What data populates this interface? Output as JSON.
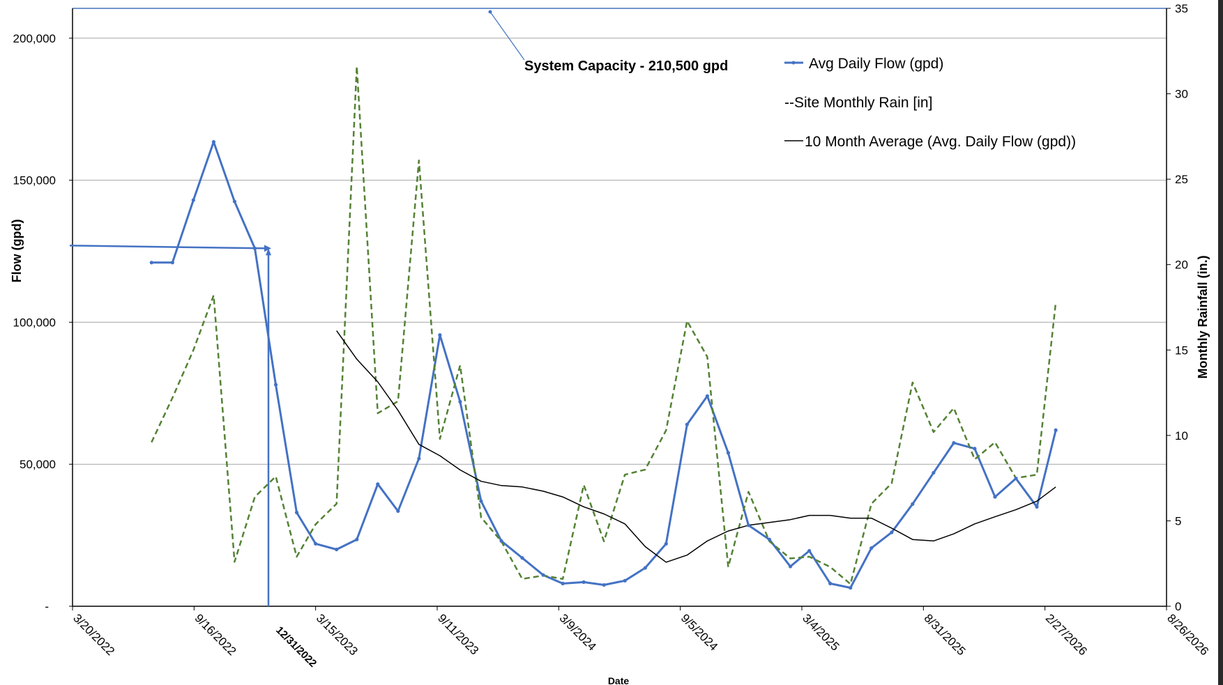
{
  "chart_data": {
    "type": "line",
    "x_label": "Date",
    "y_label_left": "Flow (gpd)",
    "y_label_right": "Monthly Rainfall (in.)",
    "x_ticks": [
      "3/20/2022",
      "9/16/2022",
      "3/15/2023",
      "9/11/2023",
      "3/9/2024",
      "9/5/2024",
      "3/4/2025",
      "8/31/2025",
      "2/27/2026",
      "8/26/2026"
    ],
    "highlight_tick": "12/31/2022",
    "y_left_ticks": [
      "-",
      "50,000",
      "100,000",
      "150,000",
      "200,000"
    ],
    "y_left_tick_values": [
      0,
      50000,
      100000,
      150000,
      200000
    ],
    "y_right_ticks": [
      "0",
      "5",
      "10",
      "15",
      "20",
      "25",
      "30",
      "35"
    ],
    "y_right_tick_values": [
      0,
      5,
      10,
      15,
      20,
      25,
      30,
      35
    ],
    "x_range": [
      "2022-03-20",
      "2026-08-26"
    ],
    "y_left_range": [
      0,
      210500
    ],
    "y_right_range": [
      0,
      35
    ],
    "grid": "horizontal",
    "legend_position": "top-right",
    "legend": [
      "Avg Daily Flow (gpd)",
      "--Site Monthly Rain [in]",
      "10 Month Average (Avg. Daily Flow (gpd))"
    ],
    "annotation": "System Capacity - 210,500 gpd",
    "colors": {
      "flow": "#4472C4",
      "rain": "#548235",
      "average": "#000000",
      "grid": "#a6a6a6"
    },
    "series": [
      {
        "name": "Avg Daily Flow (gpd)",
        "axis": "left",
        "points": [
          [
            "2022-07-15",
            121000
          ],
          [
            "2022-08-15",
            121000
          ],
          [
            "2022-09-15",
            143000
          ],
          [
            "2022-10-15",
            163500
          ],
          [
            "2022-11-15",
            142500
          ],
          [
            "2022-12-15",
            126000
          ],
          [
            "2023-01-15",
            78000
          ],
          [
            "2023-02-15",
            33000
          ],
          [
            "2023-03-15",
            22000
          ],
          [
            "2023-04-15",
            20000
          ],
          [
            "2023-05-15",
            23500
          ],
          [
            "2023-06-15",
            43000
          ],
          [
            "2023-07-15",
            33500
          ],
          [
            "2023-08-15",
            52000
          ],
          [
            "2023-09-15",
            95500
          ],
          [
            "2023-10-15",
            72000
          ],
          [
            "2023-11-15",
            37000
          ],
          [
            "2023-12-15",
            23000
          ],
          [
            "2024-01-15",
            17000
          ],
          [
            "2024-02-15",
            11000
          ],
          [
            "2024-03-15",
            8000
          ],
          [
            "2024-04-15",
            8500
          ],
          [
            "2024-05-15",
            7500
          ],
          [
            "2024-06-15",
            9000
          ],
          [
            "2024-07-15",
            13500
          ],
          [
            "2024-08-15",
            22000
          ],
          [
            "2024-09-15",
            64000
          ],
          [
            "2024-10-15",
            74000
          ],
          [
            "2024-11-15",
            54000
          ],
          [
            "2024-12-15",
            28500
          ],
          [
            "2025-01-15",
            23500
          ],
          [
            "2025-02-15",
            14000
          ],
          [
            "2025-03-15",
            19500
          ],
          [
            "2025-04-15",
            8000
          ],
          [
            "2025-05-15",
            6500
          ],
          [
            "2025-06-15",
            20500
          ],
          [
            "2025-07-15",
            26000
          ],
          [
            "2025-08-15",
            36000
          ],
          [
            "2025-09-15",
            47000
          ],
          [
            "2025-10-15",
            57500
          ],
          [
            "2025-11-15",
            55500
          ],
          [
            "2025-12-15",
            38500
          ],
          [
            "2026-01-15",
            45000
          ],
          [
            "2026-02-15",
            35000
          ],
          [
            "2026-03-15",
            62000
          ]
        ]
      },
      {
        "name": "Site Monthly Rain [in]",
        "axis": "right",
        "points": [
          [
            "2022-07-15",
            9.6
          ],
          [
            "2022-08-15",
            12.2
          ],
          [
            "2022-09-15",
            15.0
          ],
          [
            "2022-10-15",
            18.2
          ],
          [
            "2022-11-15",
            2.6
          ],
          [
            "2022-12-15",
            6.4
          ],
          [
            "2023-01-15",
            7.6
          ],
          [
            "2023-02-15",
            2.9
          ],
          [
            "2023-03-15",
            4.8
          ],
          [
            "2023-04-15",
            6.0
          ],
          [
            "2023-05-15",
            31.6
          ],
          [
            "2023-06-15",
            11.3
          ],
          [
            "2023-07-15",
            12.0
          ],
          [
            "2023-08-15",
            26.1
          ],
          [
            "2023-09-15",
            9.8
          ],
          [
            "2023-10-15",
            14.1
          ],
          [
            "2023-11-15",
            5.2
          ],
          [
            "2023-12-15",
            3.8
          ],
          [
            "2024-01-15",
            1.6
          ],
          [
            "2024-02-15",
            1.8
          ],
          [
            "2024-03-15",
            1.6
          ],
          [
            "2024-04-15",
            7.1
          ],
          [
            "2024-05-15",
            3.8
          ],
          [
            "2024-06-15",
            7.7
          ],
          [
            "2024-07-15",
            8.0
          ],
          [
            "2024-08-15",
            10.3
          ],
          [
            "2024-09-15",
            16.7
          ],
          [
            "2024-10-15",
            14.6
          ],
          [
            "2024-11-15",
            2.3
          ],
          [
            "2024-12-15",
            6.7
          ],
          [
            "2025-01-15",
            3.8
          ],
          [
            "2025-02-15",
            2.8
          ],
          [
            "2025-03-15",
            2.9
          ],
          [
            "2025-04-15",
            2.3
          ],
          [
            "2025-05-15",
            1.3
          ],
          [
            "2025-06-15",
            6.0
          ],
          [
            "2025-07-15",
            7.2
          ],
          [
            "2025-08-15",
            13.1
          ],
          [
            "2025-09-15",
            10.2
          ],
          [
            "2025-10-15",
            11.6
          ],
          [
            "2025-11-15",
            8.6
          ],
          [
            "2025-12-15",
            9.6
          ],
          [
            "2026-01-15",
            7.5
          ],
          [
            "2026-02-15",
            7.7
          ],
          [
            "2026-03-15",
            17.8
          ]
        ]
      },
      {
        "name": "10 Month Average (Avg. Daily Flow (gpd))",
        "axis": "left",
        "points": [
          [
            "2023-04-15",
            97000
          ],
          [
            "2023-05-15",
            87000
          ],
          [
            "2023-06-15",
            79000
          ],
          [
            "2023-07-15",
            69000
          ],
          [
            "2023-08-15",
            57000
          ],
          [
            "2023-09-15",
            53000
          ],
          [
            "2023-10-15",
            48000
          ],
          [
            "2023-11-15",
            44000
          ],
          [
            "2023-12-15",
            42500
          ],
          [
            "2024-01-15",
            42000
          ],
          [
            "2024-02-15",
            40500
          ],
          [
            "2024-03-15",
            38500
          ],
          [
            "2024-04-15",
            35000
          ],
          [
            "2024-05-15",
            32500
          ],
          [
            "2024-06-15",
            29000
          ],
          [
            "2024-07-15",
            21000
          ],
          [
            "2024-08-15",
            15500
          ],
          [
            "2024-09-15",
            18000
          ],
          [
            "2024-10-15",
            23000
          ],
          [
            "2024-11-15",
            26500
          ],
          [
            "2024-12-15",
            28500
          ],
          [
            "2025-01-15",
            29500
          ],
          [
            "2025-02-15",
            30500
          ],
          [
            "2025-03-15",
            32000
          ],
          [
            "2025-04-15",
            32000
          ],
          [
            "2025-05-15",
            31000
          ],
          [
            "2025-06-15",
            31000
          ],
          [
            "2025-07-15",
            27500
          ],
          [
            "2025-08-15",
            23500
          ],
          [
            "2025-09-15",
            23000
          ],
          [
            "2025-10-15",
            25500
          ],
          [
            "2025-11-15",
            29000
          ],
          [
            "2025-12-15",
            31500
          ],
          [
            "2026-01-15",
            34000
          ],
          [
            "2026-02-15",
            37000
          ],
          [
            "2026-03-15",
            42000
          ]
        ]
      }
    ]
  }
}
